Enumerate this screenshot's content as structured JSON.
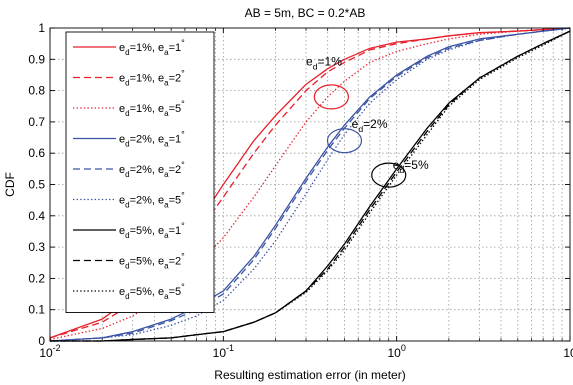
{
  "chart_data": {
    "type": "line",
    "title": "AB = 5m, BC = 0.2*AB",
    "xlabel": "Resulting estimation error (in meter)",
    "ylabel": "CDF",
    "xscale": "log",
    "xlim": [
      0.01,
      10
    ],
    "ylim": [
      0,
      1
    ],
    "grid": true,
    "legend_position": "top-left",
    "x_ticks": [
      {
        "base": "10",
        "exp": "-2",
        "value": 0.01
      },
      {
        "base": "10",
        "exp": "-1",
        "value": 0.1
      },
      {
        "base": "10",
        "exp": "0",
        "value": 1
      },
      {
        "base": "10",
        "exp": "",
        "value": 10
      }
    ],
    "y_ticks": [
      "0",
      "0.1",
      "0.2",
      "0.3",
      "0.4",
      "0.5",
      "0.6",
      "0.7",
      "0.8",
      "0.9",
      "1"
    ],
    "x": [
      0.01,
      0.02,
      0.03,
      0.05,
      0.07,
      0.1,
      0.15,
      0.2,
      0.3,
      0.4,
      0.5,
      0.7,
      1,
      1.5,
      2,
      3,
      5,
      7,
      10
    ],
    "series": [
      {
        "name": "e_d=1%, e_a=1°",
        "ed": "1",
        "ea": "1",
        "color": "#e8202a",
        "dash": "solid",
        "values": [
          0.01,
          0.07,
          0.14,
          0.27,
          0.37,
          0.5,
          0.64,
          0.72,
          0.82,
          0.87,
          0.9,
          0.935,
          0.955,
          0.965,
          0.975,
          0.985,
          0.99,
          0.995,
          1.0
        ]
      },
      {
        "name": "e_d=1%, e_a=2°",
        "ed": "1",
        "ea": "2",
        "color": "#e8202a",
        "dash": "dashed",
        "values": [
          0.01,
          0.06,
          0.12,
          0.24,
          0.34,
          0.46,
          0.6,
          0.69,
          0.8,
          0.86,
          0.89,
          0.93,
          0.95,
          0.965,
          0.975,
          0.985,
          0.99,
          0.995,
          1.0
        ]
      },
      {
        "name": "e_d=1%, e_a=5°",
        "ed": "1",
        "ea": "5",
        "color": "#e8202a",
        "dash": "dotted",
        "values": [
          0.005,
          0.04,
          0.08,
          0.16,
          0.24,
          0.33,
          0.46,
          0.56,
          0.7,
          0.78,
          0.83,
          0.89,
          0.925,
          0.95,
          0.965,
          0.98,
          0.99,
          0.995,
          1.0
        ]
      },
      {
        "name": "e_d=2%, e_a=1°",
        "ed": "2",
        "ea": "1",
        "color": "#3a53a4",
        "dash": "solid",
        "values": [
          0.0,
          0.01,
          0.03,
          0.07,
          0.11,
          0.16,
          0.27,
          0.37,
          0.52,
          0.62,
          0.69,
          0.78,
          0.85,
          0.91,
          0.94,
          0.965,
          0.98,
          0.99,
          1.0
        ]
      },
      {
        "name": "e_d=2%, e_a=2°",
        "ed": "2",
        "ea": "2",
        "color": "#3a53a4",
        "dash": "dashed",
        "values": [
          0.0,
          0.01,
          0.025,
          0.065,
          0.1,
          0.15,
          0.26,
          0.36,
          0.51,
          0.61,
          0.68,
          0.775,
          0.845,
          0.905,
          0.935,
          0.96,
          0.98,
          0.99,
          1.0
        ]
      },
      {
        "name": "e_d=2%, e_a=5°",
        "ed": "2",
        "ea": "5",
        "color": "#3a53a4",
        "dash": "dotted",
        "values": [
          0.0,
          0.01,
          0.02,
          0.05,
          0.08,
          0.13,
          0.23,
          0.32,
          0.47,
          0.58,
          0.66,
          0.76,
          0.835,
          0.9,
          0.93,
          0.96,
          0.98,
          0.99,
          1.0
        ]
      },
      {
        "name": "e_d=5%, e_a=1°",
        "ed": "5",
        "ea": "1",
        "color": "#000000",
        "dash": "solid",
        "values": [
          0.0,
          0.0,
          0.005,
          0.01,
          0.02,
          0.03,
          0.06,
          0.09,
          0.16,
          0.24,
          0.31,
          0.43,
          0.55,
          0.68,
          0.76,
          0.84,
          0.91,
          0.95,
          0.99
        ]
      },
      {
        "name": "e_d=5%, e_a=2°",
        "ed": "5",
        "ea": "2",
        "color": "#000000",
        "dash": "dashed",
        "values": [
          0.0,
          0.0,
          0.005,
          0.01,
          0.02,
          0.03,
          0.06,
          0.09,
          0.16,
          0.23,
          0.3,
          0.42,
          0.54,
          0.67,
          0.755,
          0.84,
          0.91,
          0.95,
          0.99
        ]
      },
      {
        "name": "e_d=5%, e_a=5°",
        "ed": "5",
        "ea": "5",
        "color": "#000000",
        "dash": "dotted",
        "values": [
          0.0,
          0.0,
          0.005,
          0.01,
          0.02,
          0.03,
          0.06,
          0.09,
          0.155,
          0.225,
          0.29,
          0.41,
          0.53,
          0.66,
          0.75,
          0.835,
          0.905,
          0.945,
          0.99
        ]
      }
    ],
    "annotations": [
      {
        "label": "1%",
        "color": "#e8202a",
        "x": 0.42,
        "y": 0.78,
        "tx": 0.3,
        "ty": 0.88
      },
      {
        "label": "2%",
        "color": "#3a53a4",
        "x": 0.5,
        "y": 0.64,
        "tx": 0.55,
        "ty": 0.68
      },
      {
        "label": "5%",
        "color": "#000000",
        "x": 0.9,
        "y": 0.53,
        "tx": 0.95,
        "ty": 0.55
      }
    ]
  }
}
